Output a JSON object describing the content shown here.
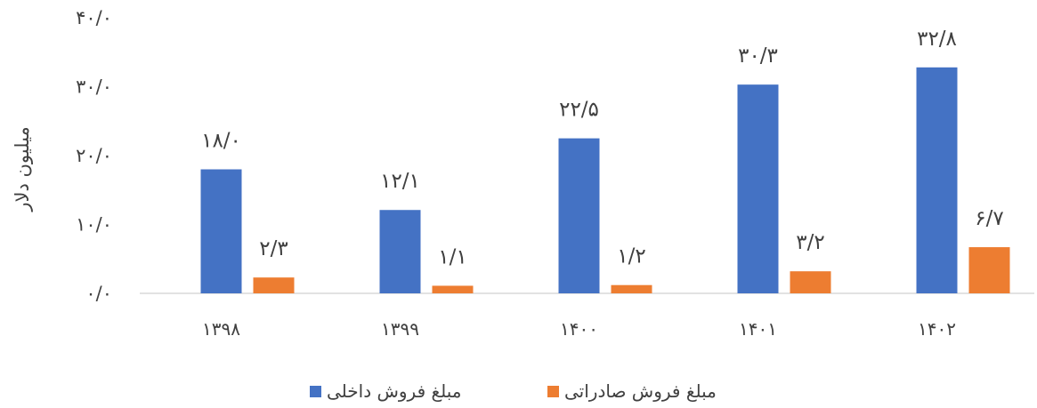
{
  "chart_data": {
    "type": "bar",
    "categories": [
      "۱۳۹۸",
      "۱۳۹۹",
      "۱۴۰۰",
      "۱۴۰۱",
      "۱۴۰۲"
    ],
    "series": [
      {
        "name": "مبلغ فروش داخلی",
        "color": "#4472C4",
        "values": [
          18.0,
          12.1,
          22.5,
          30.3,
          32.8
        ],
        "labels": [
          "۱۸/۰",
          "۱۲/۱",
          "۲۲/۵",
          "۳۰/۳",
          "۳۲/۸"
        ]
      },
      {
        "name": "مبلغ فروش صادراتی",
        "color": "#ED7D31",
        "values": [
          2.3,
          1.1,
          1.2,
          3.2,
          6.7
        ],
        "labels": [
          "۲/۳",
          "۱/۱",
          "۱/۲",
          "۳/۲",
          "۶/۷"
        ]
      }
    ],
    "ylabel": "میلیون دلار",
    "xlabel": "",
    "title": "",
    "ylim": [
      0,
      40
    ],
    "yticks": [
      0,
      10,
      20,
      30,
      40
    ],
    "ytick_labels": [
      "۰/۰",
      "۱۰/۰",
      "۲۰/۰",
      "۳۰/۰",
      "۴۰/۰"
    ],
    "grid": false,
    "legend_position": "bottom"
  }
}
